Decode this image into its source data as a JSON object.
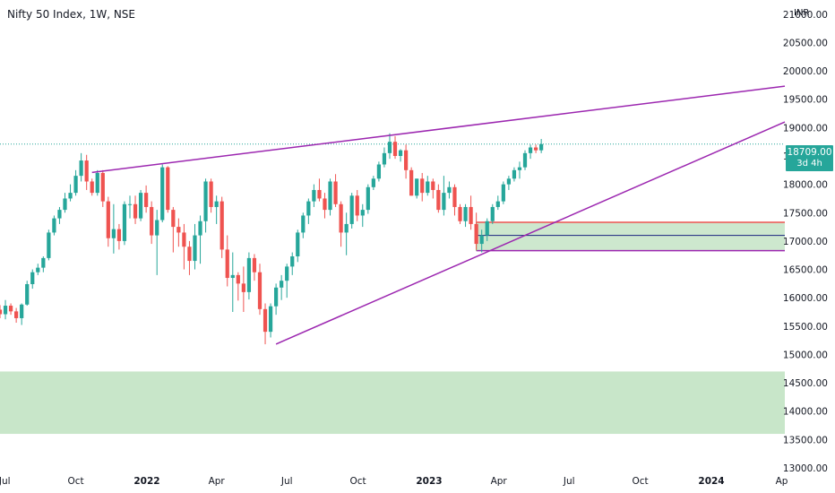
{
  "header": {
    "title": "Nifty 50 Index, 1W, NSE",
    "currency": "INR"
  },
  "price_badge": {
    "value": "18709.00",
    "countdown": "3d 4h"
  },
  "colors": {
    "up": "#26a69a",
    "down": "#ef5350",
    "trendline": "#9c27b0",
    "zone_fill": "#c8e6c9",
    "zone_border_top": "#ef5350",
    "zone_border_bottom": "#9c27b0",
    "zone_mid": "#1a237e",
    "grid": "#f0f3fa",
    "axis_text": "#131722"
  },
  "chart_data": {
    "type": "candlestick",
    "title": "Nifty 50 Index, 1W, NSE",
    "ylim": [
      13000,
      21250
    ],
    "y_ticks": [
      21000,
      20500,
      20000,
      19500,
      19000,
      18500,
      18000,
      17500,
      17000,
      16500,
      16000,
      15500,
      15000,
      14500,
      14000,
      13500,
      13000
    ],
    "y_tick_labels": [
      "21000.00",
      "20500.00",
      "20000.00",
      "19500.00",
      "19000.00",
      "18500.00",
      "18000.00",
      "17500.00",
      "17000.00",
      "16500.00",
      "16000.00",
      "15500.00",
      "15000.00",
      "14500.00",
      "14000.00",
      "13500.00",
      "13000.00"
    ],
    "x_range": [
      "2021-06-25",
      "2024-04-05"
    ],
    "x_ticks": [
      {
        "date": "2021-07-01",
        "label": "Jul",
        "bold": false
      },
      {
        "date": "2021-10-01",
        "label": "Oct",
        "bold": false
      },
      {
        "date": "2022-01-01",
        "label": "2022",
        "bold": true
      },
      {
        "date": "2022-04-01",
        "label": "Apr",
        "bold": false
      },
      {
        "date": "2022-07-01",
        "label": "Jul",
        "bold": false
      },
      {
        "date": "2022-10-01",
        "label": "Oct",
        "bold": false
      },
      {
        "date": "2023-01-01",
        "label": "2023",
        "bold": true
      },
      {
        "date": "2023-04-01",
        "label": "Apr",
        "bold": false
      },
      {
        "date": "2023-07-01",
        "label": "Jul",
        "bold": false
      },
      {
        "date": "2023-10-01",
        "label": "Oct",
        "bold": false
      },
      {
        "date": "2024-01-01",
        "label": "2024",
        "bold": true
      },
      {
        "date": "2024-04-01",
        "label": "Ap",
        "bold": false
      }
    ],
    "candles_start": "2021-06-25",
    "candles_interval_days": 7,
    "candles": [
      [
        15790,
        15870,
        15640,
        15710
      ],
      [
        15710,
        15960,
        15620,
        15860
      ],
      [
        15860,
        15900,
        15700,
        15760
      ],
      [
        15760,
        15820,
        15560,
        15640
      ],
      [
        15640,
        15900,
        15520,
        15880
      ],
      [
        15880,
        16300,
        15860,
        16240
      ],
      [
        16240,
        16500,
        16160,
        16450
      ],
      [
        16450,
        16600,
        16400,
        16530
      ],
      [
        16530,
        16730,
        16450,
        16700
      ],
      [
        16700,
        17200,
        16660,
        17150
      ],
      [
        17150,
        17450,
        17100,
        17400
      ],
      [
        17400,
        17600,
        17300,
        17550
      ],
      [
        17550,
        17850,
        17500,
        17750
      ],
      [
        17750,
        18000,
        17700,
        17850
      ],
      [
        17850,
        18250,
        17800,
        18150
      ],
      [
        18150,
        18550,
        18050,
        18420
      ],
      [
        18420,
        18520,
        17900,
        18050
      ],
      [
        18050,
        18100,
        17800,
        17850
      ],
      [
        17850,
        18250,
        17800,
        18200
      ],
      [
        18200,
        18250,
        17600,
        17700
      ],
      [
        17700,
        17780,
        16900,
        17050
      ],
      [
        17050,
        17650,
        16780,
        17210
      ],
      [
        17210,
        17300,
        16850,
        17000
      ],
      [
        17000,
        17700,
        16930,
        17650
      ],
      [
        17650,
        17800,
        17400,
        17650
      ],
      [
        17650,
        17800,
        17300,
        17400
      ],
      [
        17400,
        17900,
        17350,
        17850
      ],
      [
        17850,
        17980,
        17500,
        17600
      ],
      [
        17600,
        17700,
        16950,
        17100
      ],
      [
        17100,
        17550,
        16400,
        17370
      ],
      [
        17370,
        18350,
        17330,
        18300
      ],
      [
        18300,
        18320,
        17500,
        17550
      ],
      [
        17550,
        17600,
        16800,
        17250
      ],
      [
        17250,
        17400,
        16900,
        17150
      ],
      [
        17150,
        17300,
        16500,
        16900
      ],
      [
        16900,
        17000,
        16400,
        16650
      ],
      [
        16650,
        17300,
        16500,
        17100
      ],
      [
        17100,
        17450,
        16600,
        17350
      ],
      [
        17350,
        18100,
        17150,
        18050
      ],
      [
        18050,
        18100,
        17500,
        17600
      ],
      [
        17600,
        17800,
        17300,
        17700
      ],
      [
        17700,
        17780,
        16700,
        16850
      ],
      [
        16850,
        17100,
        16200,
        16350
      ],
      [
        16350,
        16800,
        15750,
        16400
      ],
      [
        16400,
        16450,
        15950,
        16250
      ],
      [
        16250,
        16550,
        15750,
        16100
      ],
      [
        16100,
        16800,
        15970,
        16700
      ],
      [
        16700,
        16770,
        16300,
        16450
      ],
      [
        16450,
        16600,
        15700,
        15800
      ],
      [
        15800,
        15900,
        15180,
        15400
      ],
      [
        15400,
        15900,
        15300,
        15850
      ],
      [
        15850,
        16250,
        15700,
        16180
      ],
      [
        16180,
        16400,
        15960,
        16300
      ],
      [
        16300,
        16600,
        16000,
        16550
      ],
      [
        16550,
        16800,
        16400,
        16730
      ],
      [
        16730,
        17200,
        16630,
        17150
      ],
      [
        17150,
        17500,
        17050,
        17450
      ],
      [
        17450,
        17750,
        17300,
        17700
      ],
      [
        17700,
        18000,
        17600,
        17900
      ],
      [
        17900,
        18100,
        17700,
        17750
      ],
      [
        17750,
        17850,
        17400,
        17550
      ],
      [
        17550,
        18100,
        17450,
        18050
      ],
      [
        18050,
        18180,
        17600,
        17650
      ],
      [
        17650,
        17700,
        16900,
        17150
      ],
      [
        17150,
        17500,
        16750,
        17300
      ],
      [
        17300,
        17850,
        17220,
        17800
      ],
      [
        17800,
        17900,
        17350,
        17450
      ],
      [
        17450,
        17650,
        17250,
        17550
      ],
      [
        17550,
        18000,
        17480,
        17950
      ],
      [
        17950,
        18150,
        17900,
        18100
      ],
      [
        18100,
        18400,
        18050,
        18350
      ],
      [
        18350,
        18650,
        18300,
        18550
      ],
      [
        18550,
        18900,
        18450,
        18750
      ],
      [
        18750,
        18850,
        18450,
        18500
      ],
      [
        18500,
        18620,
        18400,
        18600
      ],
      [
        18600,
        18700,
        18100,
        18250
      ],
      [
        18250,
        18300,
        17800,
        17800
      ],
      [
        17800,
        18100,
        17750,
        18100
      ],
      [
        18100,
        18200,
        17700,
        17850
      ],
      [
        17850,
        18150,
        17800,
        18050
      ],
      [
        18050,
        18100,
        17750,
        17900
      ],
      [
        17900,
        18000,
        17500,
        17550
      ],
      [
        17550,
        18150,
        17450,
        17850
      ],
      [
        17850,
        18050,
        17750,
        17950
      ],
      [
        17950,
        18000,
        17450,
        17600
      ],
      [
        17600,
        17650,
        17300,
        17350
      ],
      [
        17350,
        17650,
        17250,
        17600
      ],
      [
        17600,
        17800,
        17200,
        17300
      ],
      [
        17300,
        17500,
        16850,
        16950
      ],
      [
        16950,
        17200,
        16800,
        17100
      ],
      [
        17100,
        17400,
        17000,
        17350
      ],
      [
        17350,
        17650,
        17300,
        17600
      ],
      [
        17600,
        17800,
        17550,
        17700
      ],
      [
        17700,
        18050,
        17650,
        18000
      ],
      [
        18000,
        18150,
        17900,
        18100
      ],
      [
        18100,
        18300,
        18050,
        18250
      ],
      [
        18250,
        18400,
        18100,
        18300
      ],
      [
        18300,
        18600,
        18250,
        18550
      ],
      [
        18550,
        18700,
        18450,
        18650
      ],
      [
        18650,
        18700,
        18550,
        18600
      ],
      [
        18600,
        18800,
        18550,
        18709
      ]
    ],
    "trendlines": [
      {
        "p1": {
          "date": "2021-10-22",
          "price": 18210
        },
        "p2": {
          "date": "2024-04-05",
          "price": 19730
        }
      },
      {
        "p1": {
          "date": "2022-06-17",
          "price": 15183
        },
        "p2": {
          "date": "2024-04-05",
          "price": 19100
        }
      }
    ],
    "zones": [
      {
        "from_date": "2023-03-03",
        "to_date": "2024-04-05",
        "top": 17330,
        "bottom": 16830,
        "mid": 17100
      },
      {
        "from_date": "2021-06-25",
        "to_date": "2024-04-05",
        "top": 14700,
        "bottom": 13600
      }
    ],
    "last_price_line": 18709,
    "grid": false
  }
}
